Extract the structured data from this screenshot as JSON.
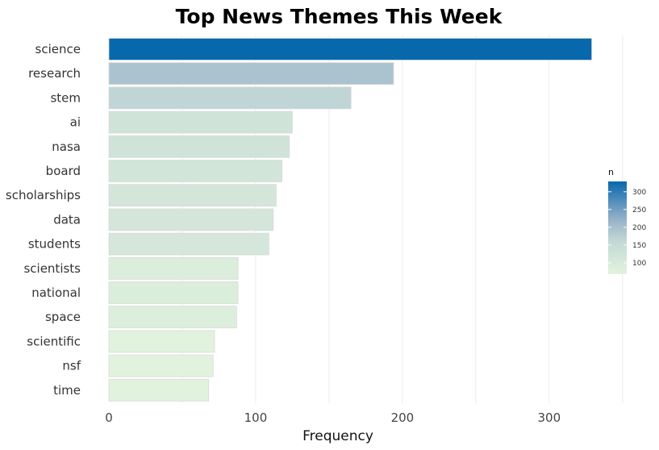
{
  "chart_data": {
    "type": "bar",
    "orientation": "horizontal",
    "title": "Top News Themes This Week",
    "xlabel": "Frequency",
    "ylabel": "",
    "categories": [
      "science",
      "research",
      "stem",
      "ai",
      "nasa",
      "board",
      "scholarships",
      "data",
      "students",
      "scientists",
      "national",
      "space",
      "scientific",
      "nsf",
      "time"
    ],
    "values": [
      329,
      194,
      165,
      125,
      123,
      118,
      114,
      112,
      109,
      88,
      88,
      87,
      72,
      71,
      68
    ],
    "xlim": [
      0,
      360
    ],
    "xticks": [
      0,
      100,
      200,
      300
    ],
    "grid": true,
    "legend": {
      "title": "n",
      "placement": "right",
      "ticks": [
        300,
        250,
        200,
        150,
        100
      ],
      "range": [
        68,
        329
      ],
      "colors": {
        "low": "#e2f3dd",
        "mid": "#c4d9d6",
        "upper": "#94b0c8",
        "high": "#0868ac"
      }
    }
  }
}
